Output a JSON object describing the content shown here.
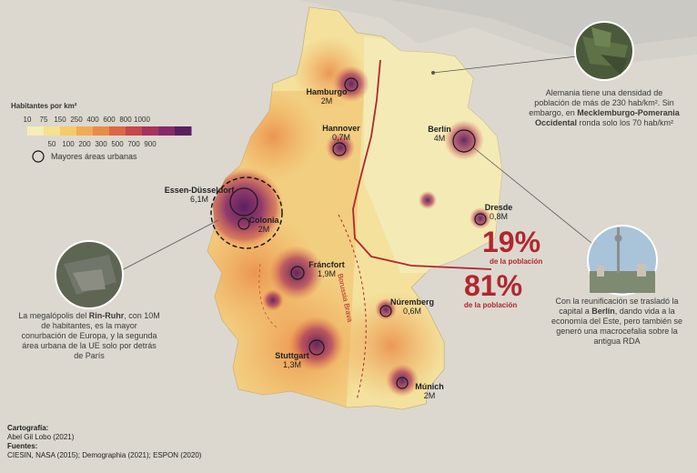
{
  "legend": {
    "title": "Habitantes por km²",
    "top_ticks": [
      "10",
      "75",
      "150",
      "250",
      "400",
      "600",
      "800",
      "1000"
    ],
    "bottom_ticks": [
      "50",
      "100",
      "200",
      "300",
      "500",
      "700",
      "900"
    ],
    "colors": [
      "#f6edb7",
      "#f7e08e",
      "#f6c96b",
      "#f2ab55",
      "#ea8b49",
      "#dc6744",
      "#c4484c",
      "#a7335c",
      "#872a68",
      "#5b1f5f"
    ],
    "urban_label": "Mayores áreas urbanas"
  },
  "cities": {
    "hamburgo": {
      "name": "Hamburgo",
      "pop": "2M"
    },
    "hannover": {
      "name": "Hannover",
      "pop": "0,7M"
    },
    "berlin": {
      "name": "Berlín",
      "pop": "4M"
    },
    "essen": {
      "name": "Essen-Düsseldorf",
      "pop": "6,1M"
    },
    "colonia": {
      "name": "Colonia",
      "pop": "2M"
    },
    "dresde": {
      "name": "Dresde",
      "pop": "0,8M"
    },
    "francfort": {
      "name": "Fráncfort",
      "pop": "1,9M"
    },
    "nuremberg": {
      "name": "Núremberg",
      "pop": "0,6M"
    },
    "stuttgart": {
      "name": "Stuttgart",
      "pop": "1,3M"
    },
    "munich": {
      "name": "Múnich",
      "pop": "2M"
    }
  },
  "border_label": "Borussia Brava",
  "stats": {
    "east_pct": "19%",
    "east_label": "de la población",
    "west_pct": "81%",
    "west_label": "de la población"
  },
  "notes": {
    "density_parts": [
      "Alemania tiene una densidad de población de más de 230 hab/km². Sin embargo, en ",
      "Mecklemburgo-Pomerania Occidental",
      " ronda solo los 70 hab/km²"
    ],
    "ruhr_parts": [
      "La megalópolis del ",
      "Rin-Ruhr",
      ", con 10M de habitantes, es la mayor conurbación de Europa, y la segunda área urbana de la UE solo por detrás de París"
    ],
    "berlin_parts": [
      "Con la reunificación se trasladó la capital a ",
      "Berlín",
      ", dando vida a la economía del Este, pero también se generó una macrocefalia sobre la antigua RDA"
    ]
  },
  "credits": {
    "cartografia_label": "Cartografía:",
    "cartografia_value": "Abel Gil Lobo (2021)",
    "fuentes_label": "Fuentes:",
    "fuentes_value": "CIESIN, NASA (2015); Demographia (2021); ESPON (2020)"
  }
}
